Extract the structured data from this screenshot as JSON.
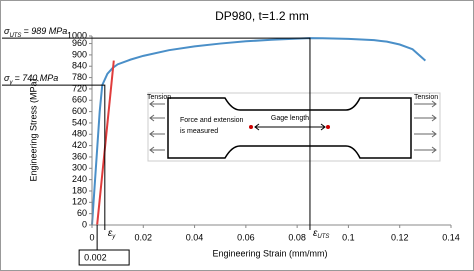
{
  "chart_data": {
    "type": "line",
    "title": "DP980, t=1.2 mm",
    "x_label": "Engineering Strain (mm/mm)",
    "y_label": "Engineering Stress (MPa)",
    "xlim": [
      0,
      0.14
    ],
    "ylim": [
      0,
      1000
    ],
    "xticks": [
      0,
      0.02,
      0.04,
      0.06,
      0.08,
      0.1,
      0.12,
      0.14
    ],
    "yticks": [
      0,
      60,
      120,
      180,
      240,
      300,
      360,
      420,
      480,
      540,
      600,
      660,
      720,
      780,
      840,
      900,
      960,
      1000
    ],
    "series": [
      {
        "color": "#4a8fc8",
        "x": [
          0,
          0.001,
          0.002,
          0.003,
          0.004,
          0.006,
          0.008,
          0.01,
          0.015,
          0.02,
          0.03,
          0.04,
          0.05,
          0.06,
          0.07,
          0.08,
          0.085,
          0.09,
          0.1,
          0.11,
          0.115,
          0.12,
          0.125,
          0.13
        ],
        "values": [
          0,
          200,
          400,
          600,
          740,
          800,
          830,
          850,
          875,
          895,
          925,
          945,
          960,
          972,
          980,
          986,
          989,
          988,
          985,
          978,
          970,
          955,
          930,
          870
        ]
      },
      {
        "color": "#e03c3c",
        "x": [
          0.002,
          0.0085
        ],
        "values": [
          0,
          870
        ]
      }
    ],
    "reference_points": [
      {
        "x": 0.085,
        "y": 989,
        "symbol": "σ",
        "sub": "UTS",
        "label": "= 989 MPa",
        "x_symbol": "ε",
        "x_sub": "UTS"
      },
      {
        "x": 0.005,
        "y": 740,
        "symbol": "σ",
        "sub": "y",
        "label": "= 740 MPa",
        "x_symbol": "ε",
        "x_sub": "y"
      }
    ],
    "offset_strain": {
      "value": 0.002,
      "label": "0.002"
    },
    "inset": {
      "left_label": "Tension",
      "right_label": "Tension",
      "note_line1": "Force and extension",
      "note_line2": "is measured",
      "gage_label": "Gage length"
    }
  }
}
